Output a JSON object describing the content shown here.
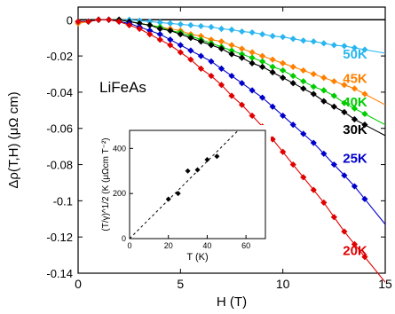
{
  "chart_data": [
    {
      "type": "scatter",
      "title": "LiFeAs",
      "xlabel": "H (T)",
      "ylabel": "Δρ(T,H) (μΩ cm)",
      "xlim": [
        0,
        15
      ],
      "ylim": [
        -0.14,
        0.007
      ],
      "xticks": [
        0,
        5,
        10,
        15
      ],
      "yticks": [
        0,
        -0.02,
        -0.04,
        -0.06,
        -0.08,
        -0.1,
        -0.12,
        -0.14
      ],
      "xtick_labels": [
        "0",
        "5",
        "10",
        "15"
      ],
      "ytick_labels": [
        "0",
        "-0.02",
        "-0.04",
        "-0.06",
        "-0.08",
        "-0.1",
        "-0.12",
        "-0.14"
      ],
      "grid": false,
      "zero_line": true,
      "legend": "series labels placed at right end of curves",
      "series": [
        {
          "name": "50K",
          "color": "#29b6f0",
          "marker": "diamond",
          "has_fit_line": true,
          "x": [
            0,
            0.5,
            1,
            1.5,
            2,
            2.5,
            3,
            3.5,
            4,
            4.5,
            5,
            5.5,
            6,
            6.5,
            7,
            7.5,
            8,
            8.5,
            9,
            9.5,
            10,
            10.5,
            11,
            11.5,
            12,
            12.5,
            13,
            13.5,
            14
          ],
          "y": [
            -0.001,
            -0.001,
            0.0,
            0.0,
            0.0,
            0.0,
            -0.0005,
            -0.001,
            -0.0015,
            -0.002,
            -0.0025,
            -0.003,
            -0.0035,
            -0.004,
            -0.005,
            -0.0055,
            -0.0065,
            -0.007,
            -0.008,
            -0.009,
            -0.0095,
            -0.0105,
            -0.0115,
            -0.012,
            -0.013,
            -0.014,
            -0.0145,
            -0.0155,
            -0.0165
          ]
        },
        {
          "name": "45K",
          "color": "#ff8000",
          "marker": "diamond",
          "has_fit_line": true,
          "x": [
            0,
            0.5,
            1,
            1.5,
            2,
            2.5,
            3,
            3.5,
            4,
            4.5,
            5,
            5.5,
            6,
            6.5,
            7,
            7.5,
            8,
            8.5,
            9,
            9.5,
            10,
            10.5,
            11,
            11.5,
            12,
            12.5,
            13,
            13.5,
            14
          ],
          "y": [
            -0.002,
            -0.001,
            0.0,
            0.0,
            0.0,
            -0.001,
            -0.002,
            -0.003,
            -0.004,
            -0.005,
            -0.006,
            -0.008,
            -0.009,
            -0.011,
            -0.012,
            -0.014,
            -0.016,
            -0.018,
            -0.02,
            -0.022,
            -0.024,
            -0.026,
            -0.028,
            -0.03,
            -0.032,
            -0.034,
            -0.036,
            -0.038,
            -0.041
          ]
        },
        {
          "name": "40K",
          "color": "#00cc00",
          "marker": "diamond",
          "has_fit_line": true,
          "x": [
            0,
            0.5,
            1,
            1.5,
            2,
            2.5,
            3,
            3.5,
            4,
            4.5,
            5,
            5.5,
            6,
            6.5,
            7,
            7.5,
            8,
            8.5,
            9,
            9.5,
            10,
            10.5,
            11,
            11.5,
            12,
            12.5,
            13,
            13.5,
            14
          ],
          "y": [
            -0.001,
            -0.001,
            0.0,
            0.0,
            0.0,
            -0.001,
            -0.002,
            -0.003,
            -0.004,
            -0.006,
            -0.007,
            -0.009,
            -0.011,
            -0.013,
            -0.015,
            -0.017,
            -0.019,
            -0.021,
            -0.023,
            -0.026,
            -0.028,
            -0.031,
            -0.034,
            -0.037,
            -0.039,
            -0.042,
            -0.046,
            -0.049,
            -0.052
          ]
        },
        {
          "name": "30K",
          "color": "#000000",
          "marker": "diamond",
          "has_fit_line": true,
          "x": [
            1,
            1.5,
            2,
            2.5,
            3,
            3.5,
            4,
            4.5,
            5,
            5.5,
            6,
            6.5,
            7,
            7.5,
            8,
            8.5,
            9,
            9.5,
            10,
            10.5,
            11,
            11.5,
            12,
            12.5,
            13,
            13.5,
            14
          ],
          "y": [
            0.0,
            0.0,
            0.0,
            -0.001,
            -0.002,
            -0.003,
            -0.005,
            -0.006,
            -0.008,
            -0.01,
            -0.012,
            -0.014,
            -0.016,
            -0.019,
            -0.021,
            -0.024,
            -0.026,
            -0.029,
            -0.032,
            -0.035,
            -0.038,
            -0.041,
            -0.045,
            -0.048,
            -0.051,
            -0.055,
            -0.058
          ]
        },
        {
          "name": "25K",
          "color": "#0000cc",
          "marker": "diamond",
          "has_fit_line": true,
          "x": [
            0,
            0.5,
            1,
            1.5,
            2,
            2.5,
            3,
            3.5,
            4,
            4.5,
            5,
            5.5,
            6,
            6.5,
            7,
            7.5,
            8,
            8.5,
            9,
            9.5,
            10,
            10.5,
            11,
            11.5,
            12,
            12.5,
            13,
            13.5,
            14
          ],
          "y": [
            -0.001,
            -0.001,
            0.0,
            0.0,
            -0.001,
            -0.002,
            -0.004,
            -0.006,
            -0.008,
            -0.011,
            -0.014,
            -0.017,
            -0.02,
            -0.023,
            -0.027,
            -0.031,
            -0.035,
            -0.039,
            -0.043,
            -0.048,
            -0.053,
            -0.058,
            -0.063,
            -0.068,
            -0.074,
            -0.08,
            -0.086,
            -0.092,
            -0.099
          ]
        },
        {
          "name": "20K",
          "color": "#e00000",
          "marker": "diamond",
          "has_fit_line": true,
          "x": [
            0,
            0.5,
            1,
            1.5,
            2,
            2.5,
            3,
            3.5,
            4,
            4.5,
            5,
            5.5,
            6,
            6.5,
            7,
            7.5,
            8,
            8.5,
            9,
            9.5,
            10,
            10.5,
            11,
            11.5,
            12,
            12.5,
            13,
            13.5,
            14
          ],
          "y": [
            -0.001,
            -0.001,
            0.0,
            0.0,
            -0.001,
            -0.003,
            -0.005,
            -0.008,
            -0.011,
            -0.014,
            -0.018,
            -0.022,
            -0.027,
            -0.031,
            -0.036,
            -0.042,
            -0.047,
            -0.053,
            -0.059,
            -0.066,
            -0.073,
            -0.08,
            -0.087,
            -0.094,
            -0.101,
            -0.109,
            -0.117,
            -0.124,
            -0.131
          ]
        }
      ]
    },
    {
      "type": "scatter",
      "title": "",
      "xlabel": "T (K)",
      "ylabel": "(T/γ)^1/2 (K (μΩcm T⁻²)",
      "xlim": [
        0,
        70
      ],
      "ylim": [
        0,
        480
      ],
      "xticks": [
        0,
        20,
        40,
        60
      ],
      "yticks": [
        0,
        200,
        400
      ],
      "xtick_labels": [
        "0",
        "20",
        "40",
        "60"
      ],
      "ytick_labels": [
        "0",
        "200",
        "400"
      ],
      "grid": false,
      "fit_line": {
        "style": "dashed",
        "color": "#000000",
        "x": [
          0,
          56
        ],
        "y": [
          0,
          480
        ]
      },
      "series": [
        {
          "name": "",
          "color": "#000000",
          "marker": "diamond",
          "x": [
            20,
            25,
            30,
            35,
            40,
            45
          ],
          "y": [
            175,
            200,
            300,
            305,
            350,
            365
          ]
        }
      ]
    }
  ]
}
